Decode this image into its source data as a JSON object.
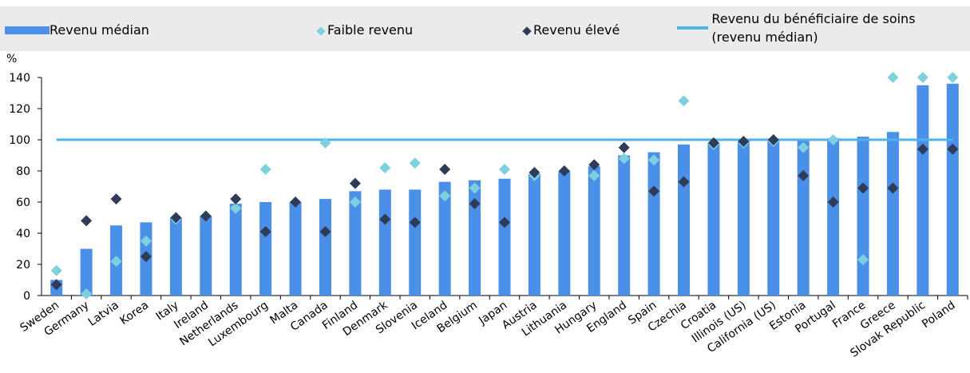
{
  "chart_data": {
    "type": "bar",
    "y_label": "%",
    "categories": [
      "Sweden",
      "Germany",
      "Latvia",
      "Korea",
      "Italy",
      "Ireland",
      "Netherlands",
      "Luxembourg",
      "Malta",
      "Canada",
      "Finland",
      "Denmark",
      "Slovenia",
      "Iceland",
      "Belgium",
      "Japan",
      "Austria",
      "Lithuania",
      "Hungary",
      "England",
      "Spain",
      "Czechia",
      "Croatia",
      "Illinois (US)",
      "California (US)",
      "Estonia",
      "Portugal",
      "France",
      "Greece",
      "Slovak Republic",
      "Poland"
    ],
    "series": [
      {
        "name": "Revenu médian",
        "kind": "bar",
        "color": "#4a8fe8",
        "values": [
          10,
          30,
          45,
          47,
          50,
          51,
          59,
          60,
          60,
          62,
          67,
          68,
          68,
          73,
          74,
          75,
          78,
          80,
          83,
          90,
          92,
          97,
          98,
          99,
          99,
          100,
          101,
          102,
          105,
          135,
          136
        ]
      },
      {
        "name": "Faible revenu",
        "kind": "diamond",
        "color": "#7fd0df",
        "values": [
          16,
          1,
          22,
          35,
          49,
          51,
          56,
          81,
          60,
          98,
          60,
          82,
          85,
          64,
          69,
          81,
          77,
          80,
          77,
          88,
          87,
          125,
          97,
          98,
          99,
          95,
          100,
          23,
          140,
          140,
          140
        ]
      },
      {
        "name": "Revenu élevé",
        "kind": "diamond",
        "color": "#2f3b57",
        "values": [
          7,
          48,
          62,
          25,
          50,
          51,
          62,
          41,
          60,
          41,
          72,
          49,
          47,
          81,
          59,
          47,
          79,
          80,
          84,
          95,
          67,
          73,
          98,
          99,
          100,
          77,
          60,
          69,
          69,
          94,
          94
        ]
      }
    ],
    "reference": {
      "name": "Revenu du bénéficiaire de soins (revenu médian)",
      "value": 100,
      "color": "#4db3ea"
    },
    "ylim": [
      0,
      140
    ],
    "yticks": [
      0,
      20,
      40,
      60,
      80,
      100,
      120,
      140
    ],
    "grid": false
  }
}
